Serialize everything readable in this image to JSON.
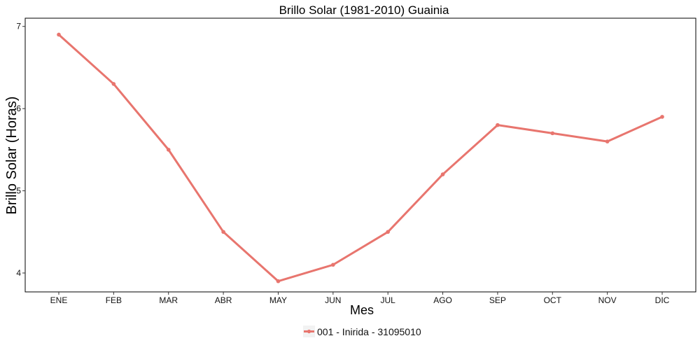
{
  "chart_data": {
    "type": "line",
    "title": "Brillo Solar (1981-2010)  Guainia",
    "xlabel": "Mes",
    "ylabel": "Brillo Solar (Horas)",
    "categories": [
      "ENE",
      "FEB",
      "MAR",
      "ABR",
      "MAY",
      "JUN",
      "JUL",
      "AGO",
      "SEP",
      "OCT",
      "NOV",
      "DIC"
    ],
    "series": [
      {
        "name": "001 - Inirida - 31095010",
        "color": "#E8756E",
        "values": [
          6.9,
          6.3,
          5.5,
          4.5,
          3.9,
          4.1,
          4.5,
          5.2,
          5.8,
          5.7,
          5.6,
          5.9
        ]
      }
    ],
    "ylim": [
      3.77,
      7.1
    ],
    "yticks": [
      4,
      5,
      6,
      7
    ],
    "grid": false,
    "legend_position": "bottom"
  }
}
